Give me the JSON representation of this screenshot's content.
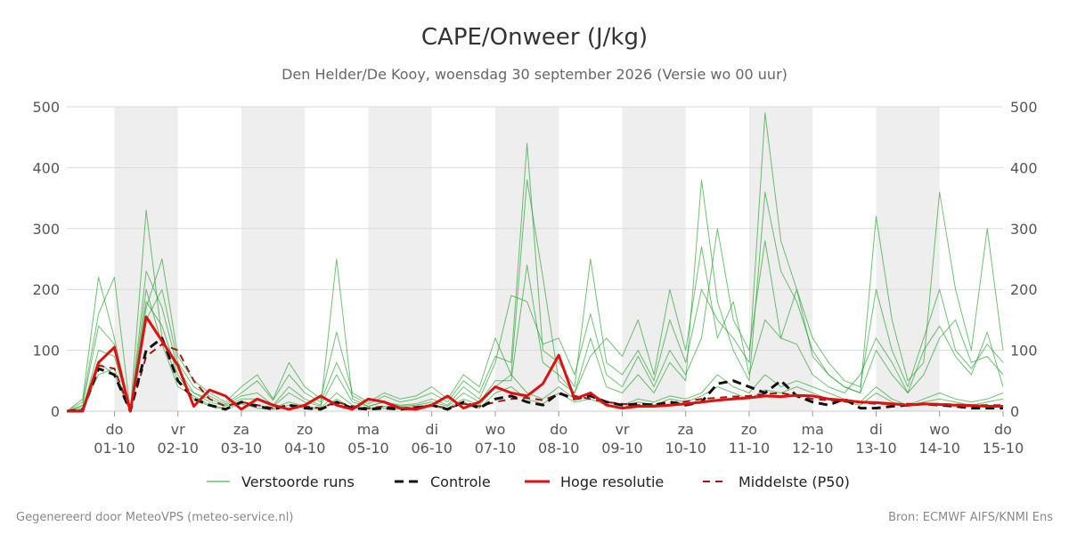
{
  "colors": {
    "ensemble": "#22a02a",
    "control": "#111111",
    "high_resolution": "#dd1111",
    "median": "#9b1a14",
    "night_band": "#eeeeee",
    "grid": "#d9d9d9"
  },
  "footer": {
    "left": "Gegenereerd door MeteoVPS (meteo-service.nl)",
    "right": "Bron: ECMWF AIFS/KNMI Ens"
  },
  "chart_data": {
    "type": "line",
    "title": "CAPE/Onweer (J/kg)",
    "subtitle": "Den Helder/De Kooy, woensdag 30 september 2026 (Versie wo 00 uur)",
    "ylim": [
      0,
      500
    ],
    "yticks": [
      0,
      100,
      200,
      300,
      400,
      500
    ],
    "xlim": [
      "2026-09-30T06:00",
      "2026-10-15T00:00"
    ],
    "grid": true,
    "secondary_y_axis": true,
    "legend_position": "bottom",
    "x_ticks": [
      {
        "day": "do",
        "date": "01-10",
        "t": "2026-10-01T00:00"
      },
      {
        "day": "vr",
        "date": "02-10",
        "t": "2026-10-02T00:00"
      },
      {
        "day": "za",
        "date": "03-10",
        "t": "2026-10-03T00:00"
      },
      {
        "day": "zo",
        "date": "04-10",
        "t": "2026-10-04T00:00"
      },
      {
        "day": "ma",
        "date": "05-10",
        "t": "2026-10-05T00:00"
      },
      {
        "day": "di",
        "date": "06-10",
        "t": "2026-10-06T00:00"
      },
      {
        "day": "wo",
        "date": "07-10",
        "t": "2026-10-07T00:00"
      },
      {
        "day": "do",
        "date": "08-10",
        "t": "2026-10-08T00:00"
      },
      {
        "day": "vr",
        "date": "09-10",
        "t": "2026-10-09T00:00"
      },
      {
        "day": "za",
        "date": "10-10",
        "t": "2026-10-10T00:00"
      },
      {
        "day": "zo",
        "date": "11-10",
        "t": "2026-10-11T00:00"
      },
      {
        "day": "ma",
        "date": "12-10",
        "t": "2026-10-12T00:00"
      },
      {
        "day": "di",
        "date": "13-10",
        "t": "2026-10-13T00:00"
      },
      {
        "day": "wo",
        "date": "14-10",
        "t": "2026-10-14T00:00"
      },
      {
        "day": "do",
        "date": "15-10",
        "t": "2026-10-15T00:00"
      }
    ],
    "shaded_days": [
      "2026-10-01",
      "2026-10-03",
      "2026-10-05",
      "2026-10-07",
      "2026-10-09",
      "2026-10-11",
      "2026-10-13"
    ],
    "x": [
      "2026-09-30T06:00",
      "2026-09-30T12:00",
      "2026-09-30T18:00",
      "2026-10-01T00:00",
      "2026-10-01T06:00",
      "2026-10-01T12:00",
      "2026-10-01T18:00",
      "2026-10-02T00:00",
      "2026-10-02T06:00",
      "2026-10-02T12:00",
      "2026-10-02T18:00",
      "2026-10-03T00:00",
      "2026-10-03T06:00",
      "2026-10-03T12:00",
      "2026-10-03T18:00",
      "2026-10-04T00:00",
      "2026-10-04T06:00",
      "2026-10-04T12:00",
      "2026-10-04T18:00",
      "2026-10-05T00:00",
      "2026-10-05T06:00",
      "2026-10-05T12:00",
      "2026-10-05T18:00",
      "2026-10-06T00:00",
      "2026-10-06T06:00",
      "2026-10-06T12:00",
      "2026-10-06T18:00",
      "2026-10-07T00:00",
      "2026-10-07T06:00",
      "2026-10-07T12:00",
      "2026-10-07T18:00",
      "2026-10-08T00:00",
      "2026-10-08T06:00",
      "2026-10-08T12:00",
      "2026-10-08T18:00",
      "2026-10-09T00:00",
      "2026-10-09T06:00",
      "2026-10-09T12:00",
      "2026-10-09T18:00",
      "2026-10-10T00:00",
      "2026-10-10T06:00",
      "2026-10-10T12:00",
      "2026-10-10T18:00",
      "2026-10-11T00:00",
      "2026-10-11T06:00",
      "2026-10-11T12:00",
      "2026-10-11T18:00",
      "2026-10-12T00:00",
      "2026-10-12T06:00",
      "2026-10-12T12:00",
      "2026-10-12T18:00",
      "2026-10-13T00:00",
      "2026-10-13T06:00",
      "2026-10-13T12:00",
      "2026-10-13T18:00",
      "2026-10-14T00:00",
      "2026-10-14T06:00",
      "2026-10-14T12:00",
      "2026-10-14T18:00",
      "2026-10-15T00:00"
    ],
    "series": [
      {
        "name": "Verstoorde runs",
        "role": "ensemble",
        "values": [
          0,
          5,
          60,
          70,
          0,
          200,
          110,
          40,
          25,
          10,
          5,
          15,
          10,
          5,
          15,
          8,
          5,
          30,
          10,
          5,
          8,
          5,
          8,
          10,
          5,
          20,
          10,
          40,
          60,
          30,
          20,
          40,
          20,
          30,
          15,
          10,
          20,
          15,
          25,
          20,
          30,
          60,
          40,
          30,
          60,
          40,
          50,
          40,
          30,
          20,
          15,
          40,
          20,
          10,
          20,
          30,
          20,
          15,
          20,
          30
        ]
      },
      {
        "name": "",
        "role": "ensemble",
        "values": [
          0,
          10,
          140,
          110,
          0,
          230,
          170,
          70,
          30,
          20,
          10,
          25,
          30,
          10,
          40,
          20,
          10,
          60,
          15,
          8,
          15,
          10,
          12,
          20,
          10,
          40,
          20,
          80,
          190,
          180,
          110,
          120,
          60,
          160,
          60,
          40,
          90,
          40,
          100,
          60,
          120,
          300,
          150,
          100,
          280,
          120,
          200,
          90,
          60,
          40,
          30,
          100,
          60,
          30,
          100,
          140,
          90,
          60,
          130,
          40
        ]
      },
      {
        "name": "",
        "role": "ensemble",
        "values": [
          0,
          3,
          100,
          90,
          0,
          180,
          140,
          60,
          20,
          8,
          3,
          12,
          5,
          3,
          10,
          5,
          3,
          20,
          5,
          3,
          5,
          3,
          5,
          8,
          3,
          15,
          5,
          30,
          40,
          20,
          12,
          30,
          15,
          20,
          10,
          5,
          15,
          10,
          20,
          15,
          25,
          40,
          30,
          20,
          35,
          30,
          40,
          30,
          20,
          15,
          10,
          30,
          15,
          8,
          15,
          20,
          15,
          10,
          15,
          20
        ]
      },
      {
        "name": "",
        "role": "ensemble",
        "values": [
          0,
          20,
          220,
          120,
          0,
          170,
          250,
          90,
          50,
          30,
          15,
          40,
          60,
          20,
          80,
          40,
          20,
          130,
          30,
          15,
          30,
          20,
          25,
          40,
          20,
          60,
          40,
          120,
          60,
          380,
          220,
          50,
          30,
          90,
          120,
          90,
          150,
          60,
          200,
          100,
          270,
          120,
          180,
          60,
          150,
          120,
          110,
          60,
          40,
          30,
          60,
          120,
          80,
          30,
          60,
          120,
          150,
          80,
          90,
          60
        ]
      },
      {
        "name": "",
        "role": "ensemble",
        "values": [
          0,
          15,
          160,
          220,
          0,
          150,
          200,
          80,
          40,
          25,
          12,
          30,
          50,
          18,
          60,
          30,
          15,
          80,
          25,
          12,
          25,
          15,
          20,
          30,
          15,
          50,
          30,
          90,
          80,
          440,
          100,
          80,
          40,
          250,
          80,
          60,
          100,
          50,
          150,
          80,
          200,
          150,
          120,
          80,
          490,
          280,
          200,
          120,
          80,
          50,
          40,
          200,
          100,
          40,
          120,
          200,
          100,
          70,
          110,
          80
        ]
      },
      {
        "name": "",
        "role": "ensemble",
        "values": [
          0,
          8,
          80,
          60,
          0,
          330,
          120,
          50,
          30,
          15,
          8,
          20,
          20,
          8,
          30,
          15,
          8,
          250,
          20,
          8,
          15,
          8,
          10,
          15,
          8,
          30,
          15,
          50,
          50,
          240,
          80,
          60,
          30,
          120,
          40,
          30,
          60,
          30,
          80,
          50,
          380,
          180,
          100,
          50,
          360,
          230,
          180,
          100,
          60,
          40,
          30,
          320,
          150,
          50,
          80,
          360,
          200,
          100,
          300,
          100
        ]
      },
      {
        "name": "Controle",
        "role": "control",
        "values": [
          0,
          2,
          70,
          60,
          0,
          100,
          120,
          50,
          20,
          10,
          3,
          15,
          8,
          3,
          10,
          5,
          3,
          15,
          5,
          3,
          5,
          3,
          5,
          10,
          3,
          15,
          5,
          20,
          25,
          15,
          10,
          30,
          20,
          25,
          15,
          10,
          12,
          10,
          15,
          10,
          15,
          45,
          50,
          40,
          30,
          50,
          25,
          15,
          10,
          20,
          5,
          5,
          8,
          10,
          12,
          10,
          8,
          5,
          5,
          5
        ]
      },
      {
        "name": "Hoge resolutie",
        "role": "high_resolution",
        "values": [
          0,
          0,
          80,
          105,
          0,
          155,
          115,
          75,
          8,
          35,
          25,
          3,
          20,
          10,
          3,
          10,
          25,
          10,
          3,
          20,
          15,
          5,
          3,
          10,
          25,
          5,
          15,
          40,
          30,
          25,
          45,
          92,
          20,
          30,
          10,
          5,
          8,
          8,
          10,
          12,
          15,
          18,
          20,
          22,
          25,
          24,
          26,
          25,
          20,
          18,
          15,
          14,
          12,
          10,
          12,
          11,
          10,
          9,
          8,
          8
        ]
      },
      {
        "name": "Middelste (P50)",
        "role": "median",
        "values": [
          0,
          1,
          75,
          70,
          0,
          90,
          110,
          100,
          50,
          20,
          8,
          15,
          10,
          5,
          10,
          8,
          5,
          15,
          8,
          5,
          8,
          5,
          7,
          10,
          5,
          12,
          8,
          15,
          20,
          22,
          18,
          28,
          25,
          20,
          15,
          12,
          10,
          12,
          14,
          16,
          20,
          22,
          24,
          25,
          28,
          30,
          25,
          20,
          18,
          16,
          14,
          12,
          12,
          12,
          12,
          12,
          11,
          10,
          10,
          10
        ]
      }
    ]
  }
}
